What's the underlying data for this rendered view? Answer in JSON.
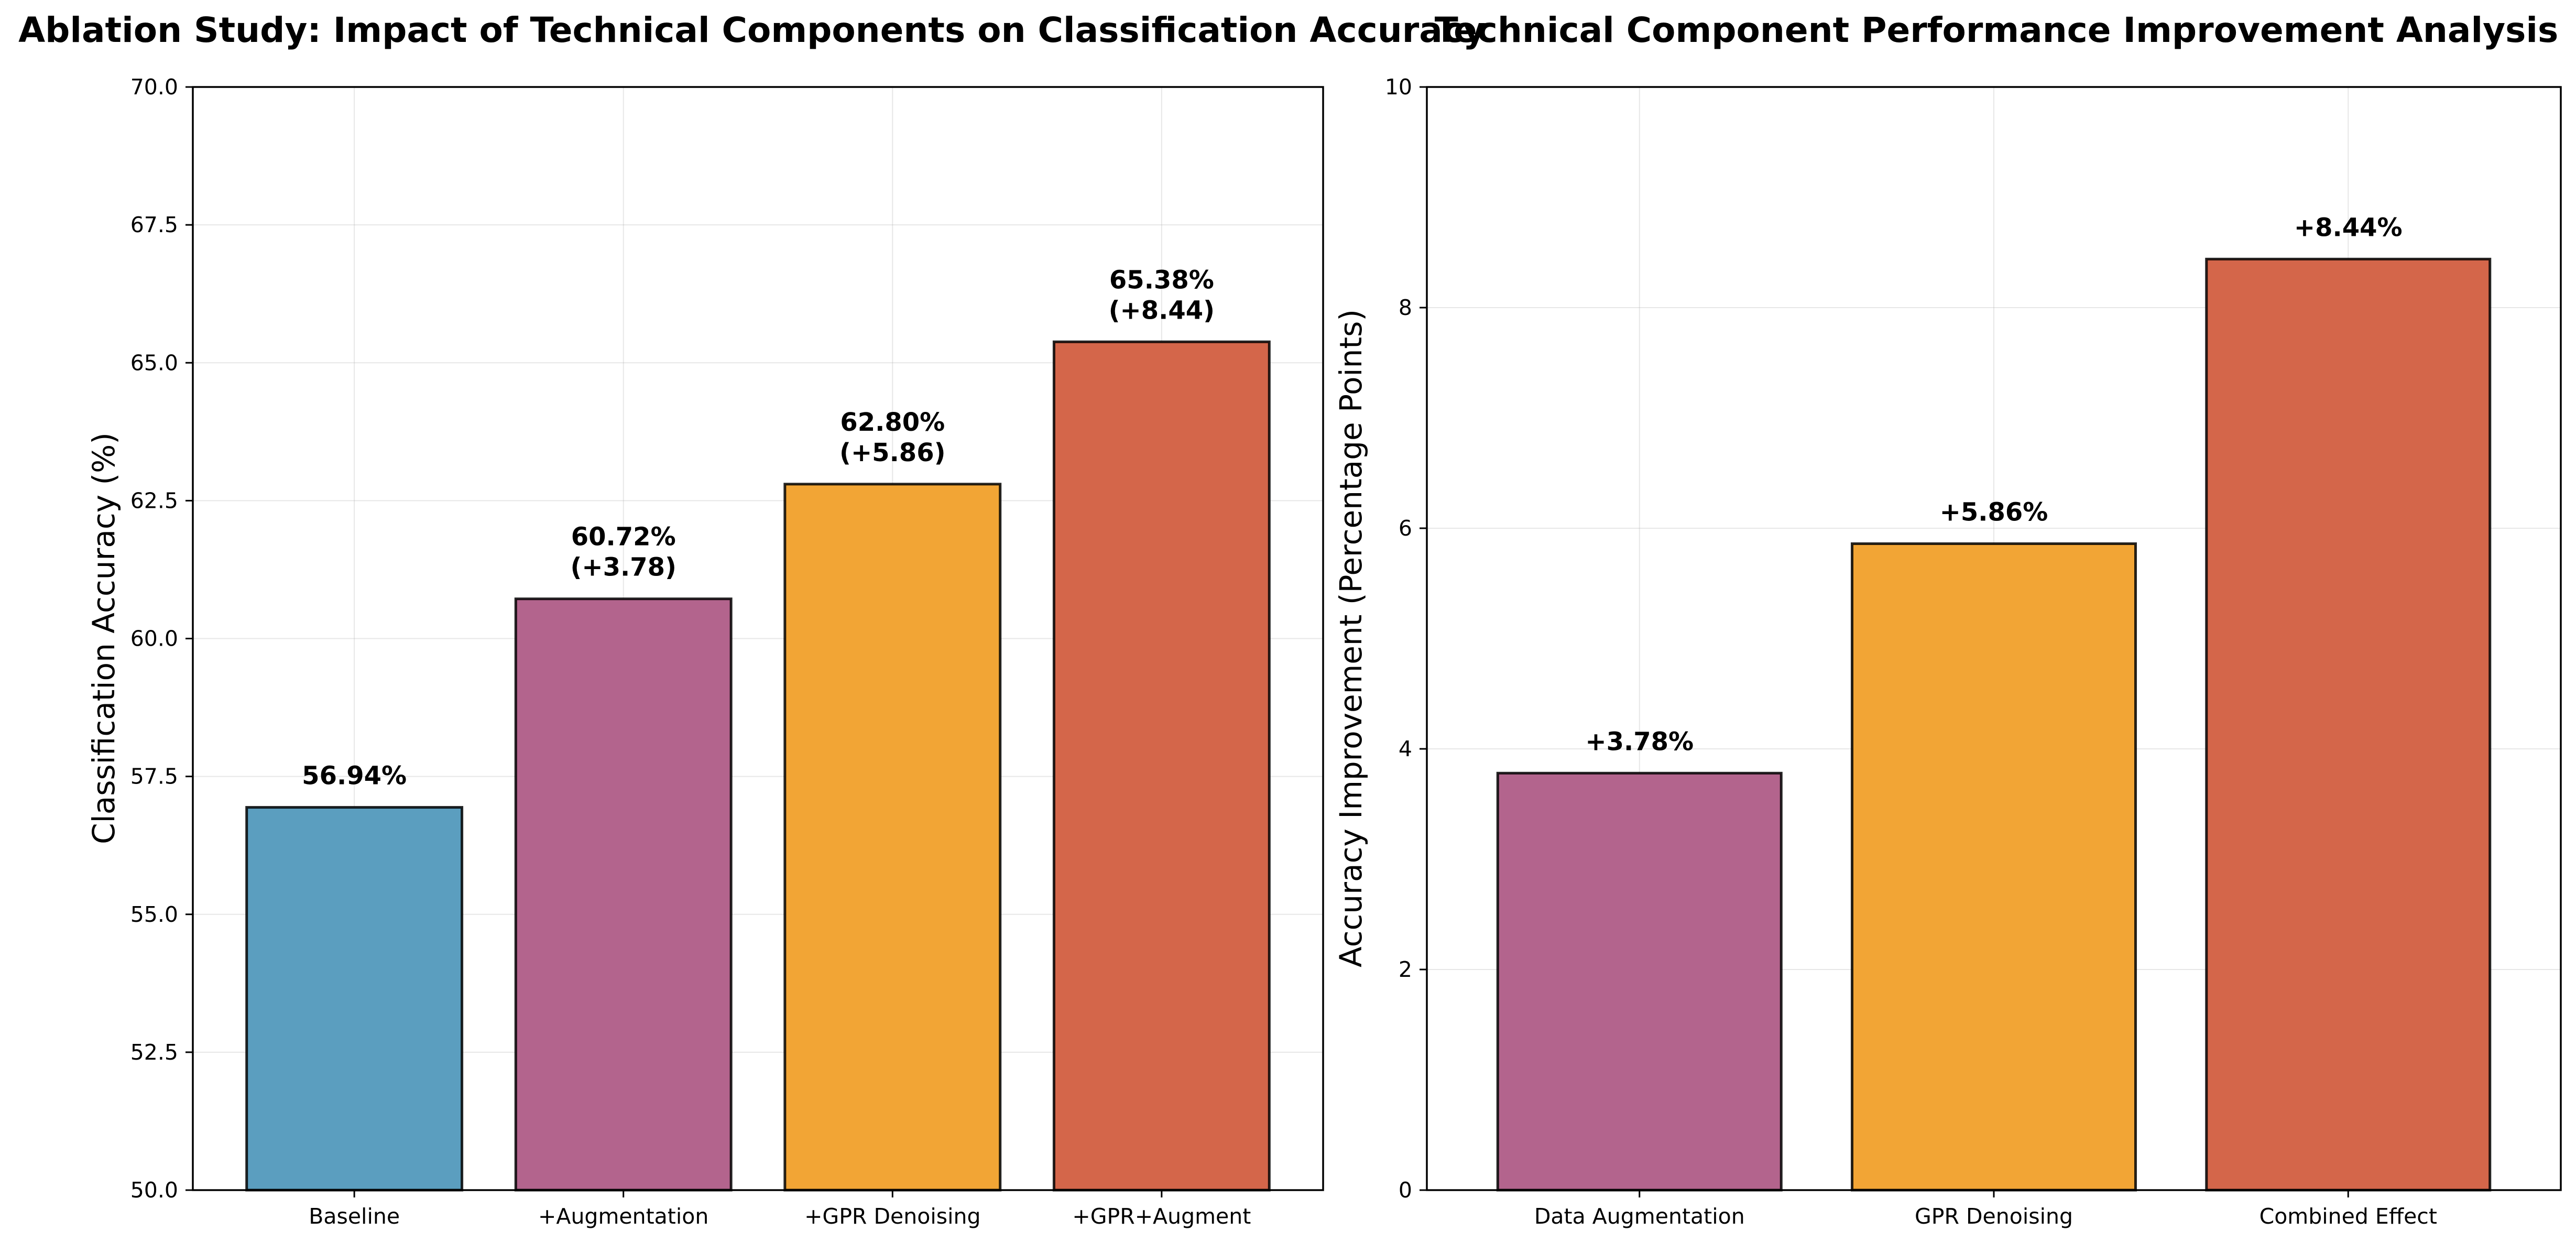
{
  "chart_data": [
    {
      "type": "bar",
      "title": "Ablation Study: Impact of Technical Components on Classification Accuracy",
      "xlabel": "",
      "ylabel": "Classification Accuracy (%)",
      "categories": [
        "Baseline",
        "+Augmentation",
        "+GPR Denoising",
        "+GPR+Augment"
      ],
      "values": [
        56.94,
        60.72,
        62.8,
        65.38
      ],
      "data_labels": [
        [
          "56.94%"
        ],
        [
          "60.72%",
          "(+3.78)"
        ],
        [
          "62.80%",
          "(+5.86)"
        ],
        [
          "65.38%",
          "(+8.44)"
        ]
      ],
      "colors": [
        "#5b9ebf",
        "#b3648d",
        "#f2a535",
        "#d4664a"
      ],
      "ylim": [
        50,
        70
      ],
      "yticks": [
        50.0,
        52.5,
        55.0,
        57.5,
        60.0,
        62.5,
        65.0,
        67.5,
        70.0
      ],
      "ytick_labels": [
        "50.0",
        "52.5",
        "55.0",
        "57.5",
        "60.0",
        "62.5",
        "65.0",
        "67.5",
        "70.0"
      ],
      "grid": true
    },
    {
      "type": "bar",
      "title": "Technical Component Performance Improvement Analysis",
      "xlabel": "",
      "ylabel": "Accuracy Improvement (Percentage Points)",
      "categories": [
        "Data Augmentation",
        "GPR Denoising",
        "Combined Effect"
      ],
      "values": [
        3.78,
        5.86,
        8.44
      ],
      "data_labels": [
        [
          "+3.78%"
        ],
        [
          "+5.86%"
        ],
        [
          "+8.44%"
        ]
      ],
      "colors": [
        "#b3648d",
        "#f2a535",
        "#d4664a"
      ],
      "ylim": [
        0,
        10
      ],
      "yticks": [
        0,
        2,
        4,
        6,
        8,
        10
      ],
      "ytick_labels": [
        "0",
        "2",
        "4",
        "6",
        "8",
        "10"
      ],
      "grid": true
    }
  ]
}
